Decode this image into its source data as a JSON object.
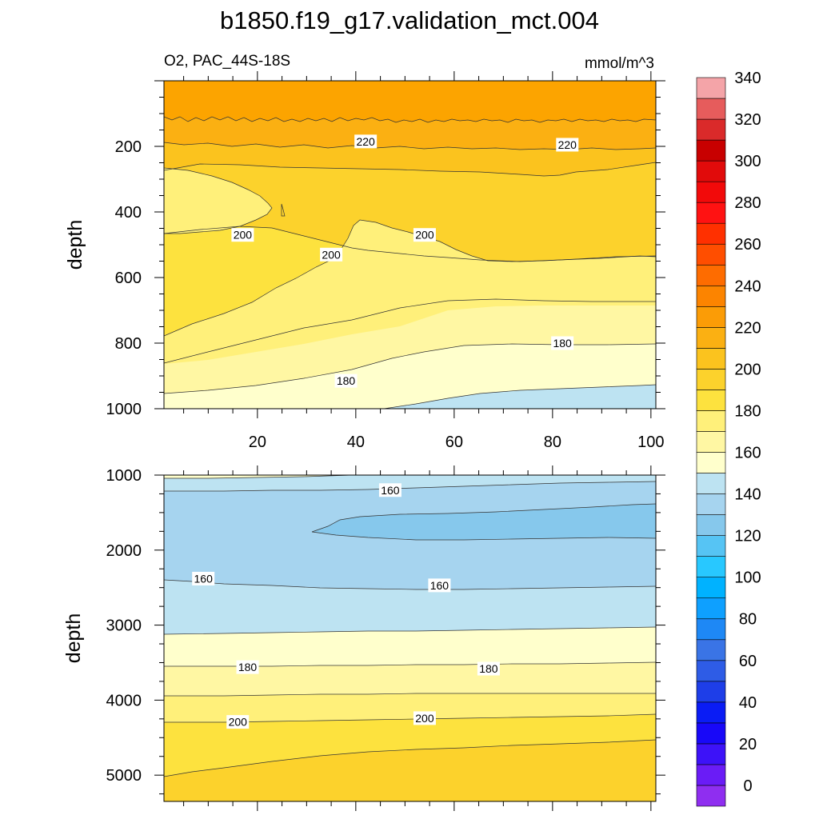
{
  "title": "b1850.f19_g17.validation_mct.004",
  "subtitle_left": "O2, PAC_44S-18S",
  "subtitle_right": "mmol/m^3",
  "chart_data": [
    {
      "type": "contour",
      "panel": "top",
      "ylabel": "depth",
      "xlim": [
        1,
        101
      ],
      "ylim": [
        1000,
        0
      ],
      "xticks": [
        20,
        40,
        60,
        80,
        100
      ],
      "yticks": [
        200,
        400,
        600,
        800,
        1000
      ],
      "contour_interval": 10,
      "contour_labels": [
        {
          "text": "220",
          "x": 42,
          "y": 185
        },
        {
          "text": "220",
          "x": 83,
          "y": 195
        },
        {
          "text": "200",
          "x": 17,
          "y": 470
        },
        {
          "text": "200",
          "x": 35,
          "y": 530
        },
        {
          "text": "200",
          "x": 54,
          "y": 470
        },
        {
          "text": "180",
          "x": 38,
          "y": 915
        },
        {
          "text": "180",
          "x": 82,
          "y": 800
        }
      ]
    },
    {
      "type": "contour",
      "panel": "bottom",
      "ylabel": "depth",
      "xlim": [
        1,
        101
      ],
      "ylim": [
        5350,
        1000
      ],
      "yticks": [
        1000,
        2000,
        3000,
        4000,
        5000
      ],
      "contour_interval": 10,
      "contour_labels": [
        {
          "text": "160",
          "x": 47,
          "y": 1200
        },
        {
          "text": "160",
          "x": 9,
          "y": 2380
        },
        {
          "text": "160",
          "x": 57,
          "y": 2470
        },
        {
          "text": "180",
          "x": 18,
          "y": 3560
        },
        {
          "text": "180",
          "x": 67,
          "y": 3580
        },
        {
          "text": "200",
          "x": 16,
          "y": 4290
        },
        {
          "text": "200",
          "x": 54,
          "y": 4240
        }
      ]
    }
  ],
  "colorbar": {
    "labels": [
      "0",
      "20",
      "40",
      "60",
      "80",
      "100",
      "120",
      "140",
      "160",
      "180",
      "200",
      "220",
      "240",
      "260",
      "280",
      "300",
      "320",
      "340"
    ],
    "colors": [
      "#8f2ef0",
      "#6a1cf6",
      "#3d12f8",
      "#1808f8",
      "#0a1cf5",
      "#1e3ee8",
      "#2e5ce6",
      "#3a74e6",
      "#1e88f5",
      "#0ea0ff",
      "#00b2ff",
      "#28c8ff",
      "#56c4f4",
      "#86c8ec",
      "#a6d4ef",
      "#bde3f2",
      "#ffffcc",
      "#fff7a3",
      "#fff07a",
      "#fde23e",
      "#fcd22c",
      "#fbc31e",
      "#fbb012",
      "#fb9c06",
      "#fc8400",
      "#fe6c00",
      "#ff4e00",
      "#ff3000",
      "#ff1212",
      "#f20a0a",
      "#e10b0b",
      "#c80000",
      "#da2a2a",
      "#e65c5c",
      "#f4a4a8"
    ]
  }
}
